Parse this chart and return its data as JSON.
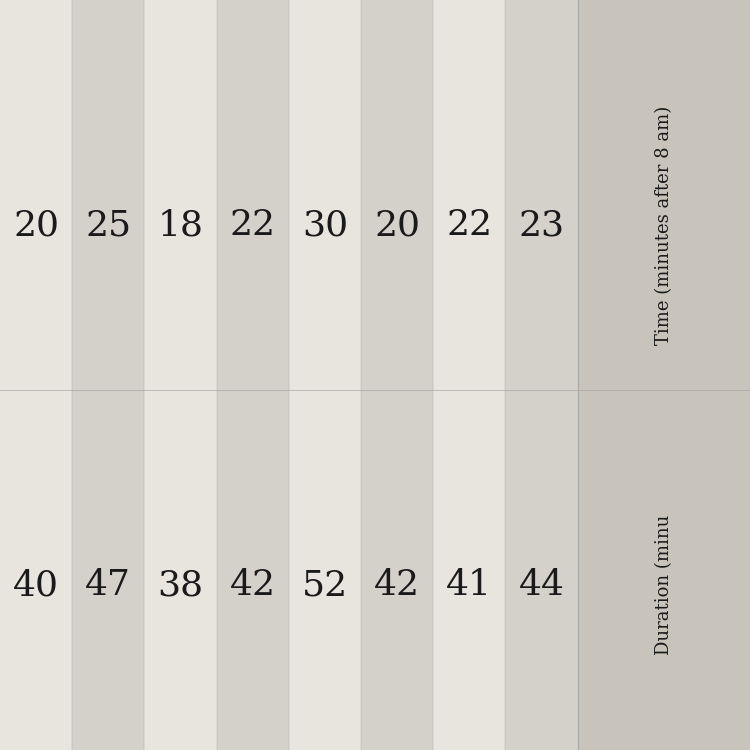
{
  "col1_header": "Time (minutes after 8 am)",
  "col2_header": "Duration (minu",
  "time_values": [
    20,
    25,
    18,
    22,
    30,
    20,
    22,
    23
  ],
  "duration_values": [
    40,
    47,
    38,
    42,
    52,
    42,
    41,
    44
  ],
  "bg_color": "#ccc8c0",
  "stripe_colors": [
    "#e8e4de",
    "#d4d0ca"
  ],
  "header_bg_color": "#c8c4bc",
  "text_color": "#1a1a1a",
  "figsize": [
    7.5,
    7.5
  ],
  "dpi": 100
}
